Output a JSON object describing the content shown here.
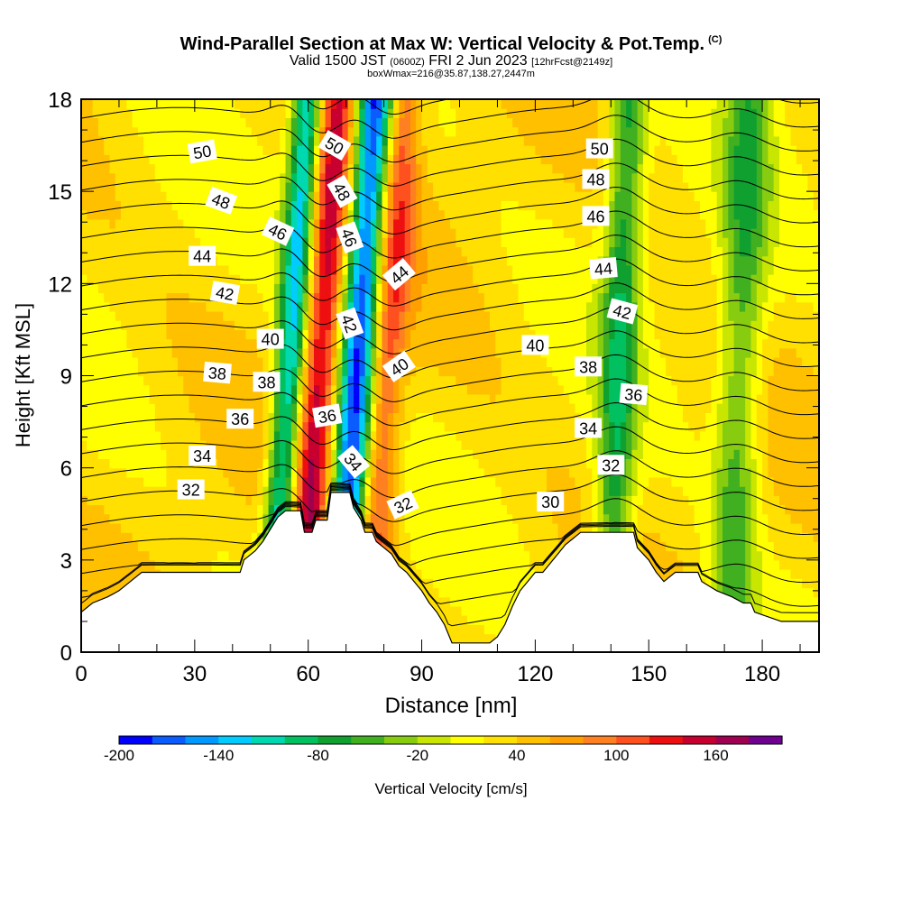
{
  "header": {
    "title": "Wind-Parallel Section at Max W: Vertical Velocity & Pot.Temp.",
    "copyright": "(C)",
    "valid_main": "Valid 1500 JST",
    "valid_utc": "(0600Z)",
    "valid_date": "FRI 2 Jun 2023",
    "forecast": "[12hrFcst@2149z]",
    "box_info": "boxWmax=216@35.87,138.27,2447m"
  },
  "chart_data": {
    "type": "heatmap",
    "xlabel": "Distance [nm]",
    "ylabel": "Height [Kft MSL]",
    "xlim": [
      0,
      195
    ],
    "ylim": [
      0,
      18
    ],
    "x_ticks": [
      0,
      30,
      60,
      90,
      120,
      150,
      180
    ],
    "y_ticks": [
      0,
      3,
      6,
      9,
      12,
      15,
      18
    ],
    "terrain_kft": [
      [
        0,
        1.3
      ],
      [
        3,
        1.6
      ],
      [
        7,
        1.8
      ],
      [
        10,
        2.0
      ],
      [
        13,
        2.3
      ],
      [
        16,
        2.6
      ],
      [
        19,
        2.6
      ],
      [
        25,
        2.6
      ],
      [
        30,
        2.6
      ],
      [
        35,
        2.6
      ],
      [
        42,
        2.6
      ],
      [
        43,
        3.0
      ],
      [
        46,
        3.3
      ],
      [
        48,
        3.6
      ],
      [
        50,
        4.0
      ],
      [
        52,
        4.4
      ],
      [
        54,
        4.6
      ],
      [
        58,
        4.6
      ],
      [
        59,
        3.9
      ],
      [
        61,
        3.9
      ],
      [
        62,
        4.3
      ],
      [
        65,
        4.3
      ],
      [
        66,
        5.2
      ],
      [
        71,
        5.2
      ],
      [
        72,
        4.7
      ],
      [
        74,
        4.3
      ],
      [
        75,
        3.9
      ],
      [
        77,
        3.9
      ],
      [
        78,
        3.6
      ],
      [
        80,
        3.4
      ],
      [
        82,
        3.2
      ],
      [
        84,
        2.8
      ],
      [
        86,
        2.6
      ],
      [
        88,
        2.3
      ],
      [
        90,
        2.0
      ],
      [
        92,
        1.6
      ],
      [
        94,
        1.3
      ],
      [
        96,
        0.9
      ],
      [
        98,
        0.3
      ],
      [
        102,
        0.3
      ],
      [
        108,
        0.3
      ],
      [
        110,
        0.5
      ],
      [
        112,
        0.9
      ],
      [
        114,
        1.5
      ],
      [
        116,
        2.0
      ],
      [
        118,
        2.3
      ],
      [
        120,
        2.6
      ],
      [
        122,
        2.6
      ],
      [
        124,
        2.9
      ],
      [
        126,
        3.2
      ],
      [
        128,
        3.5
      ],
      [
        132,
        3.9
      ],
      [
        138,
        3.9
      ],
      [
        142,
        3.9
      ],
      [
        146,
        3.9
      ],
      [
        147,
        3.4
      ],
      [
        150,
        3.0
      ],
      [
        152,
        2.6
      ],
      [
        154,
        2.3
      ],
      [
        157,
        2.6
      ],
      [
        163,
        2.6
      ],
      [
        164,
        2.3
      ],
      [
        168,
        2.0
      ],
      [
        172,
        1.8
      ],
      [
        175,
        1.6
      ],
      [
        177,
        1.6
      ],
      [
        178,
        1.3
      ],
      [
        185,
        1.0
      ],
      [
        190,
        1.0
      ],
      [
        195,
        1.0
      ]
    ],
    "colorbar": {
      "label": "Vertical Velocity [cm/s]",
      "min": -200,
      "max": 200,
      "step": 20,
      "tick_values": [
        -200,
        -140,
        -80,
        -20,
        40,
        100,
        160
      ],
      "colors": [
        "#0000ff",
        "#0a5cff",
        "#0099ff",
        "#00ccff",
        "#00d9b0",
        "#00c060",
        "#10a030",
        "#40b020",
        "#88cc10",
        "#c8e600",
        "#ffff00",
        "#ffe000",
        "#ffc000",
        "#ffa000",
        "#ff8020",
        "#ff5020",
        "#ee1010",
        "#c80030",
        "#a00050",
        "#700090"
      ]
    },
    "vertical_velocity_features": [
      {
        "name": "downdraft",
        "x_center_nm": 55,
        "width_nm": 4,
        "value_cms": -140
      },
      {
        "name": "updraft",
        "x_center_nm": 63,
        "width_nm": 5,
        "value_cms": 140
      },
      {
        "name": "downdraft",
        "x_center_nm": 73,
        "width_nm": 5,
        "value_cms": -200
      },
      {
        "name": "updraft",
        "x_center_nm": 80,
        "width_nm": 5,
        "value_cms": 110
      },
      {
        "name": "downdraft",
        "x_center_nm": 142,
        "width_nm": 5,
        "value_cms": -80
      },
      {
        "name": "downdraft",
        "x_center_nm": 174,
        "width_nm": 6,
        "value_cms": -60
      }
    ],
    "pot_temp_contours": {
      "interval": 1,
      "min": 29,
      "max": 51,
      "labels": [
        {
          "value": "50",
          "x": 32,
          "y": 16.3,
          "angle": -10
        },
        {
          "value": "48",
          "x": 37,
          "y": 14.7,
          "angle": 20
        },
        {
          "value": "46",
          "x": 52,
          "y": 13.7,
          "angle": 25
        },
        {
          "value": "44",
          "x": 32,
          "y": 12.9,
          "angle": 0
        },
        {
          "value": "42",
          "x": 38,
          "y": 11.7,
          "angle": 10
        },
        {
          "value": "40",
          "x": 50,
          "y": 10.2,
          "angle": 0
        },
        {
          "value": "38",
          "x": 36,
          "y": 9.1,
          "angle": 5
        },
        {
          "value": "38",
          "x": 49,
          "y": 8.8,
          "angle": 0
        },
        {
          "value": "36",
          "x": 42,
          "y": 7.6,
          "angle": 0
        },
        {
          "value": "34",
          "x": 32,
          "y": 6.4,
          "angle": 0
        },
        {
          "value": "32",
          "x": 29,
          "y": 5.3,
          "angle": 0
        },
        {
          "value": "50",
          "x": 67,
          "y": 16.5,
          "angle": 30
        },
        {
          "value": "48",
          "x": 69,
          "y": 15.0,
          "angle": 60
        },
        {
          "value": "46",
          "x": 71,
          "y": 13.5,
          "angle": 70
        },
        {
          "value": "44",
          "x": 84,
          "y": 12.3,
          "angle": -40
        },
        {
          "value": "42",
          "x": 71,
          "y": 10.7,
          "angle": 70
        },
        {
          "value": "40",
          "x": 84,
          "y": 9.3,
          "angle": -35
        },
        {
          "value": "36",
          "x": 65,
          "y": 7.7,
          "angle": -10
        },
        {
          "value": "34",
          "x": 72,
          "y": 6.2,
          "angle": 50
        },
        {
          "value": "32",
          "x": 85,
          "y": 4.8,
          "angle": -25
        },
        {
          "value": "50",
          "x": 137,
          "y": 16.4,
          "angle": 0
        },
        {
          "value": "48",
          "x": 136,
          "y": 15.4,
          "angle": 0
        },
        {
          "value": "46",
          "x": 136,
          "y": 14.2,
          "angle": 0
        },
        {
          "value": "44",
          "x": 138,
          "y": 12.5,
          "angle": -5
        },
        {
          "value": "42",
          "x": 143,
          "y": 11.1,
          "angle": 15
        },
        {
          "value": "40",
          "x": 120,
          "y": 10.0,
          "angle": 0
        },
        {
          "value": "38",
          "x": 134,
          "y": 9.3,
          "angle": 0
        },
        {
          "value": "36",
          "x": 146,
          "y": 8.4,
          "angle": 5
        },
        {
          "value": "34",
          "x": 134,
          "y": 7.3,
          "angle": 0
        },
        {
          "value": "32",
          "x": 140,
          "y": 6.1,
          "angle": 0
        },
        {
          "value": "30",
          "x": 124,
          "y": 4.9,
          "angle": 0
        }
      ]
    }
  }
}
